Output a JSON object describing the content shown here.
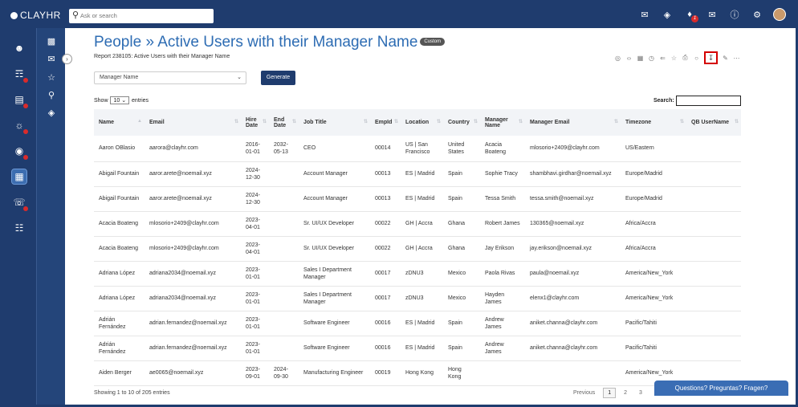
{
  "app": {
    "logo": "CLAYHR"
  },
  "search": {
    "placeholder": "Ask or search"
  },
  "top_icons": [
    "mail-icon",
    "layers-icon",
    "bell-icon",
    "envelope-icon",
    "help-icon",
    "settings-icon"
  ],
  "notifications_badge": "1",
  "page": {
    "title": "People » Active Users with their Manager Name",
    "badge": "Custom",
    "subtitle": "Report 238105: Active Users with their Manager Name"
  },
  "filter": {
    "selected": "Manager Name",
    "generate_label": "Generate"
  },
  "table_controls": {
    "show_label": "Show",
    "entries_value": "10",
    "entries_label": "entries",
    "search_label": "Search:"
  },
  "columns": [
    "Name",
    "Email",
    "Hire Date",
    "End Date",
    "Job Title",
    "EmpId",
    "Location",
    "Country",
    "Manager Name",
    "Manager Email",
    "Timezone",
    "QB UserName"
  ],
  "rows": [
    [
      "Aaron OBlasio",
      "aarora@clayhr.com",
      "2016-01-01",
      "2032-05-13",
      "CEO",
      "00014",
      "US | San Francisco",
      "United States",
      "Acacia Boateng",
      "mlosorio+2409@clayhr.com",
      "US/Eastern",
      ""
    ],
    [
      "Abigail Fountain",
      "aaror.arete@noemail.xyz",
      "2024-12-30",
      "",
      "Account Manager",
      "00013",
      "ES | Madrid",
      "Spain",
      "Sophie Tracy",
      "shambhavi.girdhar@noemail.xyz",
      "Europe/Madrid",
      ""
    ],
    [
      "Abigail Fountain",
      "aaror.arete@noemail.xyz",
      "2024-12-30",
      "",
      "Account Manager",
      "00013",
      "ES | Madrid",
      "Spain",
      "Tessa Smith",
      "tessa.smith@noemail.xyz",
      "Europe/Madrid",
      ""
    ],
    [
      "Acacia Boateng",
      "mlosorio+2409@clayhr.com",
      "2023-04-01",
      "",
      "Sr. UI/UX Developer",
      "00022",
      "GH | Accra",
      "Ghana",
      "Robert James",
      "130365@noemail.xyz",
      "Africa/Accra",
      ""
    ],
    [
      "Acacia Boateng",
      "mlosorio+2409@clayhr.com",
      "2023-04-01",
      "",
      "Sr. UI/UX Developer",
      "00022",
      "GH | Accra",
      "Ghana",
      "Jay Erikson",
      "jay.erikson@noemail.xyz",
      "Africa/Accra",
      ""
    ],
    [
      "Adriana López",
      "adriana2034@noemail.xyz",
      "2023-01-01",
      "",
      "Sales I Department Manager",
      "00017",
      "zDNU3",
      "Mexico",
      "Paola Rivas",
      "paula@noemail.xyz",
      "America/New_York",
      ""
    ],
    [
      "Adriana López",
      "adriana2034@noemail.xyz",
      "2023-01-01",
      "",
      "Sales I Department Manager",
      "00017",
      "zDNU3",
      "Mexico",
      "Hayden James",
      "elenx1@clayhr.com",
      "America/New_York",
      ""
    ],
    [
      "Adrián Fernández",
      "adrian.fernandez@noemail.xyz",
      "2023-01-01",
      "",
      "Software Engineer",
      "00016",
      "ES | Madrid",
      "Spain",
      "Andrew James",
      "aniket.channa@clayhr.com",
      "Pacific/Tahiti",
      ""
    ],
    [
      "Adrián Fernández",
      "adrian.fernandez@noemail.xyz",
      "2023-01-01",
      "",
      "Software Engineer",
      "00016",
      "ES | Madrid",
      "Spain",
      "Andrew James",
      "aniket.channa@clayhr.com",
      "Pacific/Tahiti",
      ""
    ],
    [
      "Aiden Berger",
      "ae0065@noemail.xyz",
      "2023-09-01",
      "2024-09-30",
      "Manufacturing Engineer",
      "00019",
      "Hong Kong",
      "Hong Kong",
      "",
      "",
      "America/New_York",
      ""
    ]
  ],
  "footer": {
    "info": "Showing 1 to 10 of 205 entries",
    "previous": "Previous",
    "pages": [
      "1",
      "2",
      "3"
    ]
  },
  "chat": {
    "label": "Questions? Preguntas? Fragen?"
  }
}
